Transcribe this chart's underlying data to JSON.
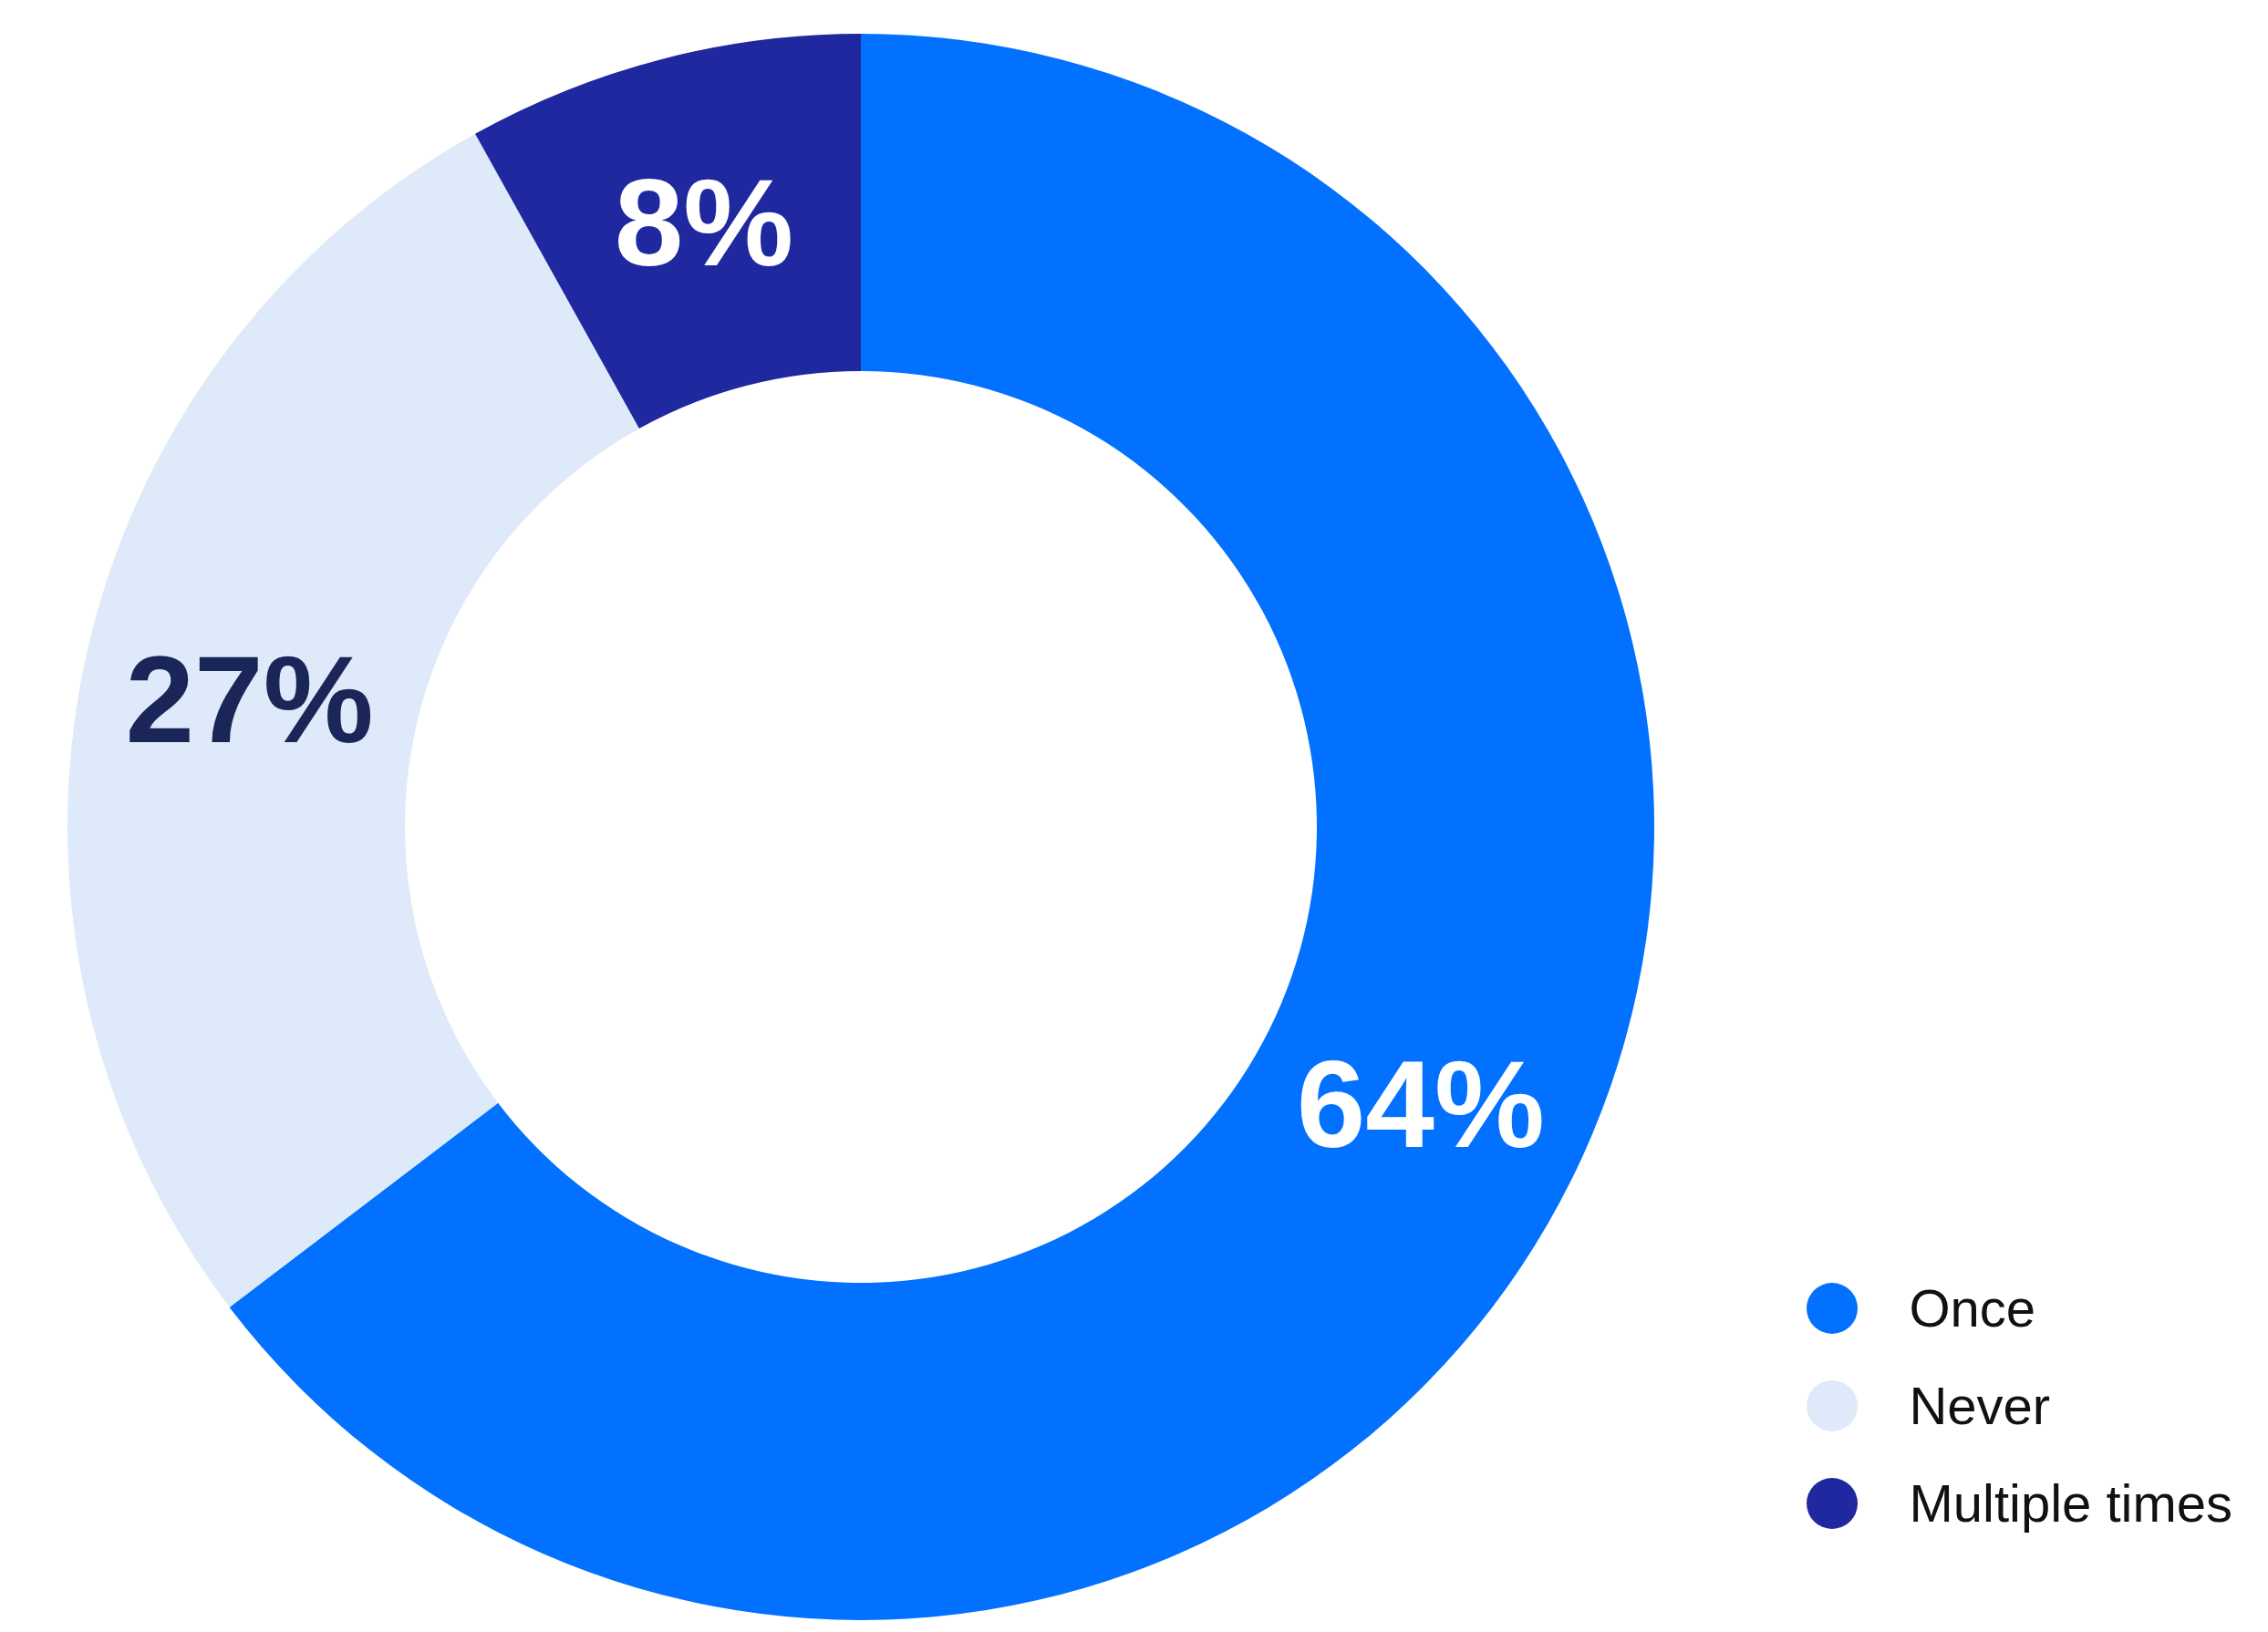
{
  "chart_data": {
    "type": "donut",
    "categories": [
      "Once",
      "Never",
      "Multiple times"
    ],
    "values": [
      64,
      27,
      8
    ],
    "colors": [
      "#0371ff",
      "#deeaf9",
      "#1f289e"
    ],
    "value_labels": [
      "64%",
      "27%",
      "8%"
    ],
    "legend": "bottom right"
  }
}
